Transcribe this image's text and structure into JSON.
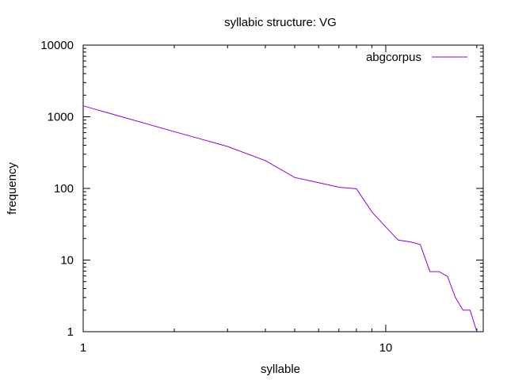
{
  "chart_data": {
    "type": "line",
    "title": "syllabic structure: VG",
    "xlabel": "syllable",
    "ylabel": "frequency",
    "xscale": "log",
    "yscale": "log",
    "xlim": [
      1,
      21
    ],
    "ylim": [
      1,
      10000
    ],
    "x_ticks": [
      1,
      10
    ],
    "x_tick_labels": [
      "1",
      "10"
    ],
    "y_ticks": [
      1,
      10,
      100,
      1000,
      10000
    ],
    "y_tick_labels": [
      "1",
      "10",
      "100",
      "1000",
      "10000"
    ],
    "grid": false,
    "legend_position": "top-right",
    "series": [
      {
        "name": "abgcorpus",
        "color": "#9400d3",
        "x": [
          1,
          2,
          3,
          4,
          5,
          6,
          7,
          8,
          9,
          10,
          11,
          12,
          13,
          14,
          15,
          16,
          17,
          18,
          19,
          20
        ],
        "y": [
          1420,
          620,
          385,
          245,
          142,
          120,
          104,
          99,
          47,
          29,
          19,
          18,
          16.5,
          6.9,
          6.9,
          5.9,
          3.0,
          2.0,
          2.0,
          1.0
        ]
      }
    ]
  }
}
